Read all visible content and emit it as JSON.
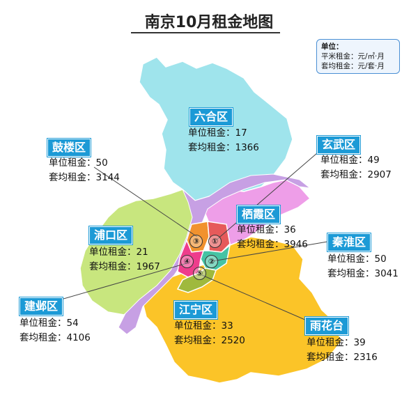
{
  "title": "南京10月租金地图",
  "unit": {
    "title": "单位：",
    "line1": "平米租金：元/㎡·月",
    "line2": "套均租金：元/套·月"
  },
  "markers": [
    "①",
    "②",
    "③",
    "④",
    "⑤"
  ],
  "districts": {
    "luhe": {
      "name": "六合区",
      "unit_rent": "单位租金：17",
      "avg_rent": "套均租金：1366"
    },
    "gulou": {
      "name": "鼓楼区",
      "unit_rent": "单位租金：50",
      "avg_rent": "套均租金：3144"
    },
    "xuanwu": {
      "name": "玄武区",
      "unit_rent": "单位租金：49",
      "avg_rent": "套均租金：2907"
    },
    "qixia": {
      "name": "栖霞区",
      "unit_rent": "单位租金：36",
      "avg_rent": "套均租金：3946"
    },
    "pukou": {
      "name": "浦口区",
      "unit_rent": "单位租金：21",
      "avg_rent": "套均租金：1967"
    },
    "qinhuai": {
      "name": "秦淮区",
      "unit_rent": "单位租金：50",
      "avg_rent": "套均租金：3041"
    },
    "jianye": {
      "name": "建邺区",
      "unit_rent": "单位租金：54",
      "avg_rent": "套均租金：4106"
    },
    "jiangning": {
      "name": "江宁区",
      "unit_rent": "单位租金：33",
      "avg_rent": "套均租金：2520"
    },
    "yuhuatai": {
      "name": "雨花台",
      "unit_rent": "单位租金：39",
      "avg_rent": "套均租金：2316"
    }
  },
  "colors": {
    "luhe": "#9fe4ec",
    "pukou": "#c8e67e",
    "qixia": "#ee9ee8",
    "jiangning": "#fbc428",
    "river": "#c7a0e4",
    "gulou": "#f1922e",
    "xuanwu": "#e65a5a",
    "qinhuai": "#45c3a4",
    "jianye": "#ee3d8c",
    "yuhuatai": "#9fb93d",
    "tag": "#1c9ad6"
  }
}
